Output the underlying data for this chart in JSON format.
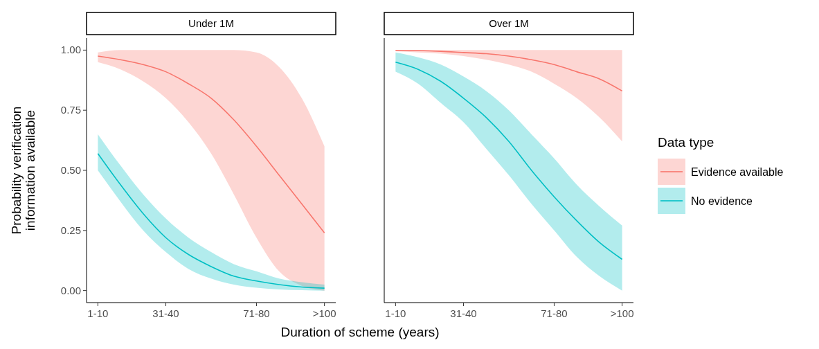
{
  "chart_data": [
    {
      "type": "line",
      "title": "Under 1M",
      "xlabel": "Duration of scheme (years)",
      "ylabel": "Probability verification information available",
      "categories": [
        "1-10",
        null,
        null,
        "31-40",
        null,
        null,
        null,
        "71-80",
        null,
        null,
        ">100"
      ],
      "ylim": [
        -0.05,
        1.05
      ],
      "yticks": [
        {
          "value": 0,
          "label": "0.00"
        },
        {
          "value": 0.25,
          "label": "0.25"
        },
        {
          "value": 0.5,
          "label": "0.50"
        },
        {
          "value": 0.75,
          "label": "0.75"
        },
        {
          "value": 1,
          "label": "1.00"
        }
      ],
      "grid": false,
      "series": [
        {
          "color": "#f8766d",
          "values": [
            0.975,
            0.96,
            0.94,
            0.91,
            0.86,
            0.8,
            0.71,
            0.6,
            0.48,
            0.36,
            0.24
          ],
          "lower": [
            0.95,
            0.92,
            0.87,
            0.8,
            0.7,
            0.57,
            0.4,
            0.22,
            0.08,
            0.02,
            0
          ],
          "upper": [
            0.99,
            1,
            1,
            1,
            1,
            1,
            1,
            0.99,
            0.93,
            0.8,
            0.6
          ]
        },
        {
          "color": "#00bfc4",
          "values": [
            0.57,
            0.44,
            0.32,
            0.22,
            0.15,
            0.1,
            0.06,
            0.04,
            0.025,
            0.015,
            0.01
          ],
          "lower": [
            0.5,
            0.37,
            0.25,
            0.16,
            0.09,
            0.05,
            0.025,
            0.012,
            0.005,
            0.002,
            0
          ],
          "upper": [
            0.65,
            0.52,
            0.4,
            0.3,
            0.22,
            0.16,
            0.11,
            0.08,
            0.05,
            0.035,
            0.025
          ]
        }
      ]
    },
    {
      "type": "line",
      "title": "Over 1M",
      "legend_title": "Data type",
      "legend": "right",
      "tick_labels": "x",
      "categories": [
        "1-10",
        null,
        null,
        "31-40",
        null,
        null,
        null,
        "71-80",
        null,
        null,
        ">100"
      ],
      "ylim": [
        -0.05,
        1.05
      ],
      "grid": false,
      "series": [
        {
          "name": "Evidence available",
          "color": "#f8766d",
          "values": [
            0.999,
            0.998,
            0.995,
            0.99,
            0.985,
            0.975,
            0.96,
            0.94,
            0.91,
            0.88,
            0.83
          ],
          "lower": [
            0.995,
            0.99,
            0.985,
            0.975,
            0.96,
            0.94,
            0.91,
            0.86,
            0.8,
            0.72,
            0.62
          ],
          "upper": [
            1,
            1,
            1,
            1,
            1,
            1,
            1,
            1,
            1,
            1,
            1
          ]
        },
        {
          "name": "No evidence",
          "color": "#00bfc4",
          "values": [
            0.95,
            0.92,
            0.87,
            0.8,
            0.72,
            0.62,
            0.5,
            0.39,
            0.29,
            0.2,
            0.13
          ],
          "lower": [
            0.91,
            0.86,
            0.78,
            0.7,
            0.59,
            0.48,
            0.36,
            0.25,
            0.14,
            0.06,
            0
          ],
          "upper": [
            0.99,
            0.97,
            0.94,
            0.89,
            0.83,
            0.75,
            0.65,
            0.55,
            0.44,
            0.35,
            0.27
          ]
        }
      ]
    }
  ]
}
